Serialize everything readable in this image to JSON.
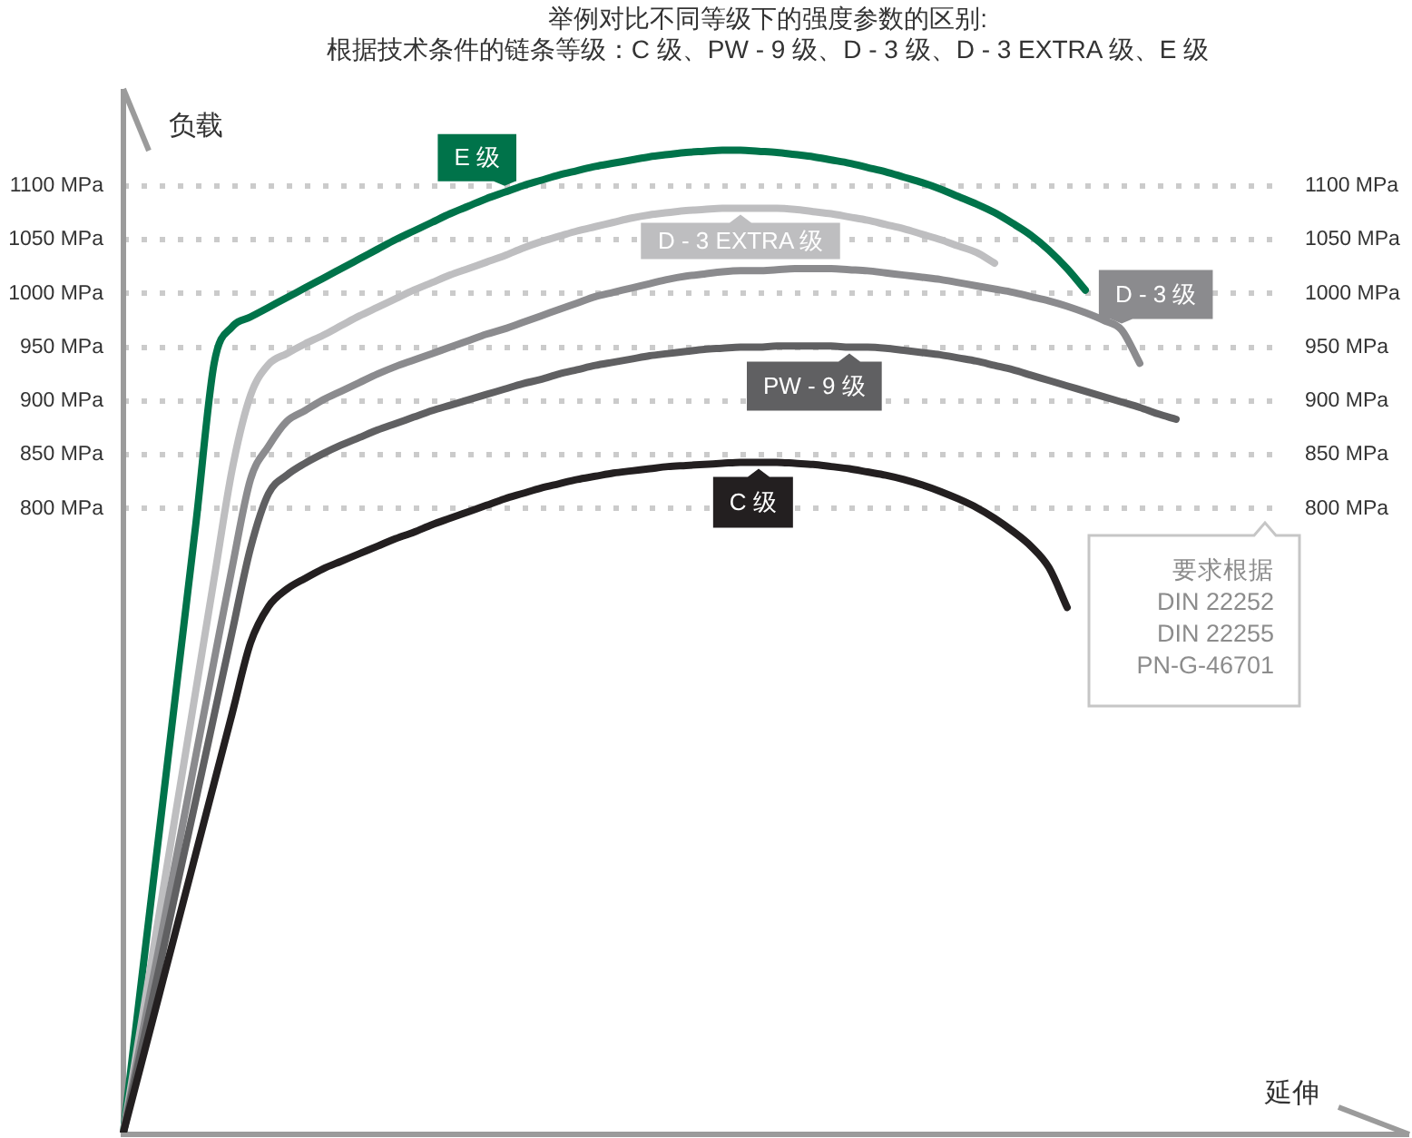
{
  "chart_data": {
    "type": "line",
    "title": "举例对比不同等级下的强度参数的区别:",
    "subtitle": "根据技术条件的链条等级：C 级、PW - 9 级、D - 3 级、D - 3 EXTRA 级、E 级",
    "xlabel": "延伸",
    "ylabel": "负载",
    "annotations": [
      "要求根据\nDIN 22252\nDIN 22255\nPN-G-46701"
    ],
    "categories": [
      null,
      null,
      null,
      null,
      null,
      null,
      null,
      null,
      null,
      null,
      null,
      null,
      null,
      null,
      null,
      null,
      null,
      null,
      null,
      null,
      null,
      null,
      null,
      null,
      null,
      null,
      null,
      null,
      null,
      null,
      null,
      null,
      null,
      null,
      null,
      null,
      null,
      null,
      null,
      null,
      null,
      null,
      null,
      null,
      null,
      null,
      null,
      null,
      null,
      null,
      null,
      null,
      null,
      null,
      null,
      null,
      null,
      null,
      null,
      null,
      null,
      null,
      null,
      null,
      null
    ],
    "series": [
      {
        "name": "C 级",
        "color": "#231f20",
        "values": [
          220,
          285,
          350,
          415,
          480,
          545,
          610,
          675,
          709,
          725,
          735,
          744,
          751,
          758,
          765,
          772,
          778,
          785,
          791,
          797,
          803,
          809,
          814,
          819,
          823,
          827,
          830,
          833,
          835,
          837,
          839,
          840,
          841,
          842,
          843,
          843,
          843,
          842,
          841,
          839,
          837,
          834,
          831,
          827,
          822,
          816,
          809,
          801,
          791,
          779,
          765,
          745,
          708,
          null,
          null,
          null,
          null,
          null,
          null,
          null,
          null,
          null,
          null,
          null,
          null
        ]
      },
      {
        "name": "PW - 9 级",
        "color": "#606062",
        "values": [
          220,
          298,
          375,
          453,
          530,
          608,
          686,
          763,
          814,
          831,
          842,
          851,
          859,
          866,
          873,
          879,
          885,
          891,
          896,
          901,
          906,
          911,
          916,
          920,
          925,
          929,
          933,
          936,
          939,
          942,
          944,
          946,
          948,
          949,
          950,
          950,
          951,
          951,
          951,
          951,
          950,
          950,
          949,
          947,
          945,
          943,
          940,
          937,
          933,
          929,
          924,
          919,
          914,
          909,
          904,
          899,
          894,
          888,
          883,
          null,
          null,
          null,
          null,
          null,
          null
        ]
      },
      {
        "name": "D - 3 级",
        "color": "#8b8b8e",
        "values": [
          220,
          308,
          395,
          483,
          571,
          659,
          746,
          827,
          858,
          881,
          891,
          901,
          909,
          917,
          925,
          932,
          938,
          944,
          950,
          956,
          962,
          967,
          973,
          979,
          985,
          991,
          997,
          1001,
          1005,
          1009,
          1013,
          1016,
          1018,
          1020,
          1021,
          1021,
          1022,
          1023,
          1023,
          1023,
          1022,
          1021,
          1019,
          1017,
          1015,
          1013,
          1010,
          1007,
          1004,
          1001,
          997,
          993,
          988,
          982,
          975,
          966,
          935,
          null,
          null,
          null,
          null,
          null,
          null,
          null,
          null
        ]
      },
      {
        "name": "D - 3 EXTRA 级",
        "color": "#bebec0",
        "values": [
          220,
          323,
          426,
          529,
          632,
          735,
          837,
          905,
          934,
          944,
          953,
          961,
          970,
          979,
          987,
          995,
          1003,
          1010,
          1017,
          1023,
          1029,
          1035,
          1042,
          1048,
          1053,
          1058,
          1062,
          1066,
          1070,
          1073,
          1075,
          1077,
          1078,
          1079,
          1079,
          1079,
          1079,
          1078,
          1076,
          1074,
          1071,
          1068,
          1064,
          1060,
          1055,
          1050,
          1044,
          1038,
          1028,
          null,
          null,
          null,
          null,
          null,
          null,
          null,
          null,
          null,
          null,
          null,
          null,
          null,
          null,
          null,
          null
        ]
      },
      {
        "name": "E 级",
        "color": "#00734a",
        "values": [
          220,
          362,
          503,
          645,
          787,
          935,
          969,
          978,
          987,
          996,
          1005,
          1014,
          1023,
          1032,
          1041,
          1050,
          1058,
          1066,
          1074,
          1081,
          1088,
          1094,
          1100,
          1105,
          1110,
          1114,
          1118,
          1121,
          1124,
          1127,
          1129,
          1131,
          1132,
          1133,
          1133,
          1132,
          1131,
          1129,
          1127,
          1124,
          1121,
          1117,
          1113,
          1108,
          1103,
          1097,
          1090,
          1083,
          1075,
          1065,
          1054,
          1040,
          1023,
          1003,
          null,
          null,
          null,
          null,
          null,
          null,
          null,
          null,
          null,
          null,
          null
        ]
      }
    ],
    "ylim": [
      220,
      1190
    ],
    "yticks": [
      {
        "value": 800,
        "label": "800 MPa"
      },
      {
        "value": 850,
        "label": "850 MPa"
      },
      {
        "value": 900,
        "label": "900 MPa"
      },
      {
        "value": 950,
        "label": "950 MPa"
      },
      {
        "value": 1000,
        "label": "1000 MPa"
      },
      {
        "value": 1050,
        "label": "1050 MPa"
      },
      {
        "value": 1100,
        "label": "1100 MPa"
      }
    ],
    "y2lim": [
      220,
      1190
    ],
    "y2ticks": [
      {
        "value": 800,
        "label": "800 MPa"
      },
      {
        "value": 850,
        "label": "850 MPa"
      },
      {
        "value": 900,
        "label": "900 MPa"
      },
      {
        "value": 950,
        "label": "950 MPa"
      },
      {
        "value": 1000,
        "label": "1000 MPa"
      },
      {
        "value": 1050,
        "label": "1050 MPa"
      },
      {
        "value": 1100,
        "label": "1100 MPa"
      }
    ],
    "grid": "y",
    "legend": false,
    "tick_labels": "y",
    "marker": "none",
    "line_style": "solid"
  }
}
